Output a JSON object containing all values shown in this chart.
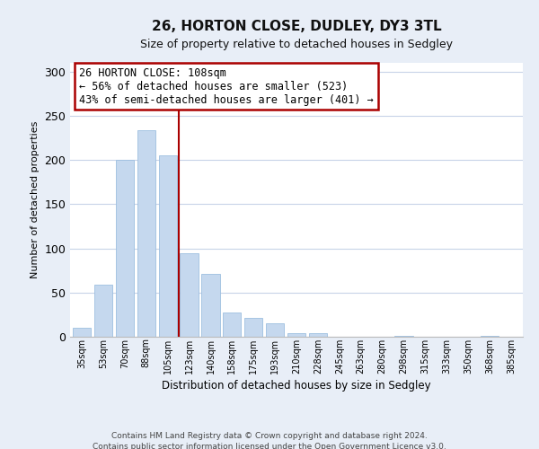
{
  "title": "26, HORTON CLOSE, DUDLEY, DY3 3TL",
  "subtitle": "Size of property relative to detached houses in Sedgley",
  "xlabel": "Distribution of detached houses by size in Sedgley",
  "ylabel": "Number of detached properties",
  "bar_labels": [
    "35sqm",
    "53sqm",
    "70sqm",
    "88sqm",
    "105sqm",
    "123sqm",
    "140sqm",
    "158sqm",
    "175sqm",
    "193sqm",
    "210sqm",
    "228sqm",
    "245sqm",
    "263sqm",
    "280sqm",
    "298sqm",
    "315sqm",
    "333sqm",
    "350sqm",
    "368sqm",
    "385sqm"
  ],
  "bar_values": [
    10,
    59,
    200,
    234,
    205,
    95,
    71,
    27,
    21,
    15,
    4,
    4,
    0,
    0,
    0,
    1,
    0,
    0,
    0,
    1,
    0
  ],
  "bar_color": "#c5d8ee",
  "bar_edge_color": "#9dbfe0",
  "vline_color": "#aa0000",
  "annotation_title": "26 HORTON CLOSE: 108sqm",
  "annotation_line1": "← 56% of detached houses are smaller (523)",
  "annotation_line2": "43% of semi-detached houses are larger (401) →",
  "box_facecolor": "#ffffff",
  "box_edgecolor": "#aa0000",
  "ylim": [
    0,
    310
  ],
  "yticks": [
    0,
    50,
    100,
    150,
    200,
    250,
    300
  ],
  "footer1": "Contains HM Land Registry data © Crown copyright and database right 2024.",
  "footer2": "Contains public sector information licensed under the Open Government Licence v3.0.",
  "bg_color": "#e8eef7",
  "plot_bg_color": "#ffffff",
  "grid_color": "#c8d4e8",
  "title_fontsize": 11,
  "subtitle_fontsize": 9,
  "bar_label_fontsize": 7,
  "ylabel_fontsize": 8,
  "xlabel_fontsize": 8.5,
  "ytick_fontsize": 9,
  "ann_fontsize": 8.5,
  "footer_fontsize": 6.5
}
